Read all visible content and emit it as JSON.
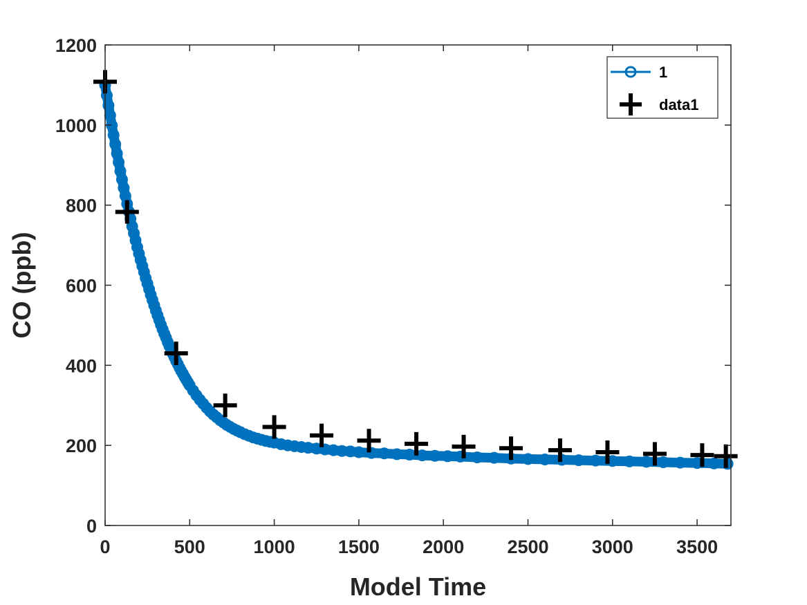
{
  "chart_data": {
    "type": "scatter",
    "title": "",
    "xlabel": "Model Time",
    "ylabel": "CO (ppb)",
    "xlim": [
      0,
      3700
    ],
    "ylim": [
      0,
      1200
    ],
    "xticks": [
      0,
      500,
      1000,
      1500,
      2000,
      2500,
      3000,
      3500
    ],
    "yticks": [
      0,
      200,
      400,
      600,
      800,
      1000,
      1200
    ],
    "grid": false,
    "legend_position": "top-right",
    "series": [
      {
        "name": "1",
        "style": "line-with-circles",
        "color": "#0072BD",
        "x": [
          0,
          10,
          20,
          30,
          40,
          50,
          60,
          70,
          80,
          90,
          100,
          110,
          120,
          130,
          140,
          150,
          160,
          170,
          180,
          190,
          200,
          210,
          220,
          230,
          240,
          250,
          260,
          270,
          280,
          290,
          300,
          310,
          320,
          330,
          340,
          350,
          360,
          370,
          380,
          390,
          400,
          410,
          420,
          430,
          440,
          450,
          460,
          470,
          480,
          490,
          500,
          520,
          540,
          560,
          580,
          600,
          620,
          640,
          660,
          680,
          700,
          720,
          740,
          760,
          780,
          800,
          825,
          850,
          875,
          900,
          925,
          950,
          975,
          1000,
          1040,
          1080,
          1120,
          1160,
          1200,
          1250,
          1300,
          1350,
          1400,
          1450,
          1500,
          1575,
          1650,
          1725,
          1800,
          1875,
          1950,
          2025,
          2100,
          2200,
          2300,
          2400,
          2500,
          2600,
          2700,
          2800,
          2900,
          3000,
          3100,
          3200,
          3300,
          3400,
          3500,
          3600,
          3680
        ],
        "y": [
          1100,
          1074,
          1049,
          1024,
          999,
          975,
          952,
          929,
          907,
          885,
          864,
          843,
          823,
          803,
          784,
          766,
          747,
          730,
          712,
          695,
          679,
          663,
          648,
          633,
          618,
          604,
          590,
          576,
          563,
          550,
          537,
          525,
          513,
          501,
          490,
          479,
          469,
          458,
          448,
          439,
          429,
          420,
          411,
          403,
          394,
          386,
          379,
          371,
          364,
          357,
          350,
          337,
          325,
          314,
          304,
          294,
          285,
          277,
          270,
          263,
          257,
          251,
          246,
          241,
          237,
          233,
          228,
          224,
          220,
          217,
          214,
          211,
          209,
          207,
          203,
          200,
          198,
          196,
          194,
          192,
          190,
          188,
          186,
          185,
          183,
          181,
          180,
          178,
          177,
          175,
          174,
          173,
          172,
          170,
          169,
          167,
          166,
          165,
          164,
          163,
          162,
          161,
          160,
          159,
          158,
          157,
          156,
          155,
          154
        ]
      },
      {
        "name": "data1",
        "style": "markers-plus",
        "color": "#000000",
        "x": [
          0,
          130,
          420,
          710,
          1000,
          1280,
          1560,
          1840,
          2120,
          2400,
          2690,
          2970,
          3250,
          3530,
          3670
        ],
        "y": [
          1108,
          783,
          430,
          300,
          246,
          225,
          212,
          204,
          197,
          193,
          188,
          183,
          179,
          176,
          173
        ]
      }
    ]
  }
}
